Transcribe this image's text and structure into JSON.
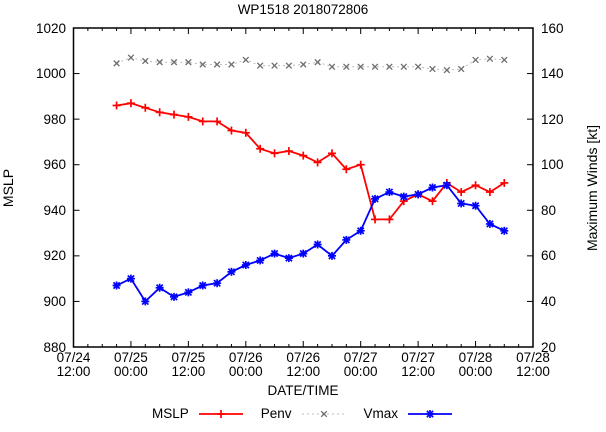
{
  "window_title": "WP1518 2018072806",
  "chart_data": {
    "type": "line",
    "title": "WP1518 2018072806",
    "xlabel": "DATE/TIME",
    "ylabel_left": "MSLP",
    "ylabel_right": "Maximum Winds [kt]",
    "grid": false,
    "legend_position": "bottom-center",
    "x_hours_total": 96,
    "x_major_step_hours": 12,
    "x_minor_step_hours": 3,
    "ylim_left": [
      880,
      1020
    ],
    "ylim_right": [
      20,
      160
    ],
    "y_tick_step": 20,
    "y_ticks_left": [
      "1020",
      "1000",
      "980",
      "960",
      "940",
      "920",
      "900",
      "880"
    ],
    "y_ticks_right": [
      "160",
      "140",
      "120",
      "100",
      "80",
      "60",
      "40",
      "20"
    ],
    "x_tick_labels": [
      {
        "date": "07/24",
        "time": "12:00"
      },
      {
        "date": "07/25",
        "time": "00:00"
      },
      {
        "date": "07/25",
        "time": "12:00"
      },
      {
        "date": "07/26",
        "time": "00:00"
      },
      {
        "date": "07/26",
        "time": "12:00"
      },
      {
        "date": "07/27",
        "time": "00:00"
      },
      {
        "date": "07/27",
        "time": "12:00"
      },
      {
        "date": "07/28",
        "time": "00:00"
      },
      {
        "date": "07/28",
        "time": "12:00"
      }
    ],
    "points_start_hour": 9,
    "points_step_hours": 3,
    "times": [
      "07/24 21:00",
      "07/25 00:00",
      "07/25 03:00",
      "07/25 06:00",
      "07/25 09:00",
      "07/25 12:00",
      "07/25 15:00",
      "07/25 18:00",
      "07/25 21:00",
      "07/26 00:00",
      "07/26 03:00",
      "07/26 06:00",
      "07/26 09:00",
      "07/26 12:00",
      "07/26 15:00",
      "07/26 18:00",
      "07/26 21:00",
      "07/27 00:00",
      "07/27 03:00",
      "07/27 06:00",
      "07/27 09:00",
      "07/27 12:00",
      "07/27 15:00",
      "07/27 18:00",
      "07/27 21:00",
      "07/28 00:00",
      "07/28 03:00",
      "07/28 06:00"
    ],
    "series": [
      {
        "name": "MSLP",
        "axis": "left",
        "color": "#ff0000",
        "marker_color": "#ff0000",
        "line": "solid",
        "marker": "plus",
        "values": [
          986,
          987,
          985,
          983,
          982,
          981,
          979,
          979,
          975,
          974,
          967,
          965,
          966,
          964,
          961,
          965,
          958,
          960,
          936,
          936,
          944,
          947,
          944,
          952,
          948,
          951,
          948,
          952
        ]
      },
      {
        "name": "Penv",
        "axis": "left",
        "color": "#bcbcbc",
        "marker_color": "#6e6e6e",
        "line": "dotted",
        "marker": "cross",
        "values": [
          1004.5,
          1007,
          1005.5,
          1005,
          1005,
          1005,
          1004,
          1004,
          1004,
          1006,
          1003.5,
          1003.5,
          1003.5,
          1004,
          1005,
          1003,
          1003,
          1003,
          1003,
          1003,
          1003,
          1003,
          1002,
          1001.5,
          1002,
          1006,
          1006.5,
          1006
        ]
      },
      {
        "name": "Vmax",
        "axis": "right",
        "color": "#0000ff",
        "marker_color": "#0000ff",
        "line": "solid",
        "marker": "asterisk",
        "values": [
          47,
          50,
          40,
          46,
          42,
          44,
          47,
          48,
          53,
          56,
          58,
          61,
          59,
          61,
          65,
          60,
          67,
          71,
          85,
          88,
          86,
          87,
          90,
          91,
          83,
          82,
          74,
          71
        ]
      }
    ]
  },
  "colors": {
    "axis": "#000000",
    "background": "#ffffff"
  }
}
